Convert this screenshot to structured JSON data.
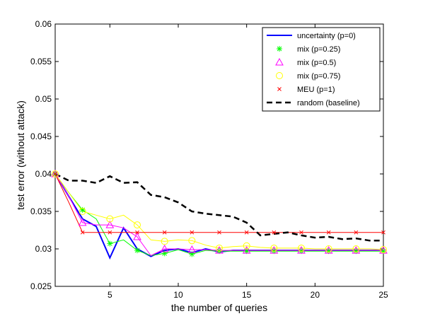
{
  "chart_data": {
    "type": "line",
    "xlabel": "the number of queries",
    "ylabel": "test error (without attack)",
    "xlim": [
      1,
      25
    ],
    "ylim": [
      0.025,
      0.06
    ],
    "x_ticks": [
      "5",
      "10",
      "15",
      "20",
      "25"
    ],
    "y_ticks": [
      "0.025",
      "0.03",
      "0.035",
      "0.04",
      "0.045",
      "0.05",
      "0.055",
      "0.06"
    ],
    "legend_position": "top-right",
    "grid": false,
    "series": [
      {
        "name": "uncertainty (p=0)",
        "color": "#0000ff",
        "line": "solid-thick",
        "marker": "none",
        "x": [
          1,
          2,
          3,
          4,
          5,
          6,
          7,
          8,
          9,
          10,
          11,
          12,
          13,
          14,
          15,
          16,
          17,
          18,
          19,
          20,
          21,
          22,
          23,
          24,
          25
        ],
        "y": [
          0.04,
          0.037,
          0.034,
          0.033,
          0.0288,
          0.0328,
          0.03,
          0.029,
          0.0298,
          0.03,
          0.0295,
          0.03,
          0.0296,
          0.0298,
          0.0298,
          0.0298,
          0.0298,
          0.0298,
          0.0298,
          0.0298,
          0.0298,
          0.0298,
          0.0298,
          0.0298,
          0.0298
        ]
      },
      {
        "name": "mix (p=0.25)",
        "color": "#00ff00",
        "line": "solid-thin",
        "marker": "asterisk",
        "x": [
          1,
          2,
          3,
          4,
          5,
          6,
          7,
          8,
          9,
          10,
          11,
          12,
          13,
          14,
          15,
          16,
          17,
          18,
          19,
          20,
          21,
          22,
          23,
          24,
          25
        ],
        "y": [
          0.04,
          0.0375,
          0.0352,
          0.034,
          0.0307,
          0.0312,
          0.0298,
          0.0291,
          0.0294,
          0.0299,
          0.0293,
          0.0298,
          0.0297,
          0.0297,
          0.0297,
          0.0297,
          0.0297,
          0.0297,
          0.0297,
          0.0297,
          0.0297,
          0.0297,
          0.0297,
          0.0297,
          0.0297
        ],
        "marker_x": [
          1,
          3,
          5,
          7,
          9,
          11,
          13,
          15,
          17,
          19,
          21,
          23,
          25
        ]
      },
      {
        "name": "mix (p=0.5)",
        "color": "#ff00ff",
        "line": "solid-thin",
        "marker": "triangle",
        "x": [
          1,
          2,
          3,
          4,
          5,
          6,
          7,
          8,
          9,
          10,
          11,
          12,
          13,
          14,
          15,
          16,
          17,
          18,
          19,
          20,
          21,
          22,
          23,
          24,
          25
        ],
        "y": [
          0.04,
          0.037,
          0.0335,
          0.0332,
          0.0332,
          0.0328,
          0.0316,
          0.0291,
          0.03,
          0.03,
          0.0299,
          0.0299,
          0.0298,
          0.0298,
          0.0298,
          0.0298,
          0.0298,
          0.0298,
          0.0298,
          0.0298,
          0.0298,
          0.0298,
          0.0298,
          0.0298,
          0.0298
        ],
        "marker_x": [
          1,
          3,
          5,
          7,
          9,
          11,
          13,
          15,
          17,
          19,
          21,
          23,
          25
        ]
      },
      {
        "name": "mix (p=0.75)",
        "color": "#ffff00",
        "line": "solid-thin",
        "marker": "circle",
        "x": [
          1,
          2,
          3,
          4,
          5,
          6,
          7,
          8,
          9,
          10,
          11,
          12,
          13,
          14,
          15,
          16,
          17,
          18,
          19,
          20,
          21,
          22,
          23,
          24,
          25
        ],
        "y": [
          0.04,
          0.0375,
          0.035,
          0.0345,
          0.034,
          0.0345,
          0.0332,
          0.0312,
          0.031,
          0.0312,
          0.0311,
          0.0305,
          0.0301,
          0.0303,
          0.0304,
          0.0302,
          0.0301,
          0.0301,
          0.0301,
          0.03,
          0.03,
          0.03,
          0.03,
          0.03,
          0.0299
        ],
        "marker_x": [
          1,
          3,
          5,
          7,
          9,
          11,
          13,
          15,
          17,
          19,
          21,
          23,
          25
        ]
      },
      {
        "name": "MEU (p=1)",
        "color": "#ff0000",
        "line": "solid-thin",
        "marker": "x",
        "x": [
          1,
          2,
          3,
          4,
          5,
          6,
          7,
          8,
          9,
          10,
          11,
          12,
          13,
          14,
          15,
          16,
          17,
          18,
          19,
          20,
          21,
          22,
          23,
          24,
          25
        ],
        "y": [
          0.04,
          0.0362,
          0.0322,
          0.0322,
          0.0322,
          0.0322,
          0.0322,
          0.0322,
          0.0322,
          0.0322,
          0.0322,
          0.0322,
          0.0322,
          0.0322,
          0.0322,
          0.0322,
          0.0322,
          0.0322,
          0.0322,
          0.0322,
          0.0322,
          0.0322,
          0.0322,
          0.0322,
          0.0322
        ],
        "marker_x": [
          1,
          3,
          5,
          7,
          9,
          11,
          13,
          15,
          17,
          19,
          21,
          23,
          25
        ]
      },
      {
        "name": "random (baseline)",
        "color": "#000000",
        "line": "dashed-thick",
        "marker": "none",
        "x": [
          1,
          2,
          3,
          4,
          5,
          6,
          7,
          8,
          9,
          10,
          11,
          12,
          13,
          14,
          15,
          16,
          17,
          18,
          19,
          20,
          21,
          22,
          23,
          24,
          25
        ],
        "y": [
          0.04,
          0.0391,
          0.0391,
          0.0388,
          0.0397,
          0.0388,
          0.0389,
          0.0372,
          0.0369,
          0.0362,
          0.035,
          0.0347,
          0.0345,
          0.0343,
          0.0335,
          0.0318,
          0.032,
          0.0322,
          0.0318,
          0.0315,
          0.0316,
          0.0313,
          0.0314,
          0.0311,
          0.0311
        ]
      }
    ]
  }
}
